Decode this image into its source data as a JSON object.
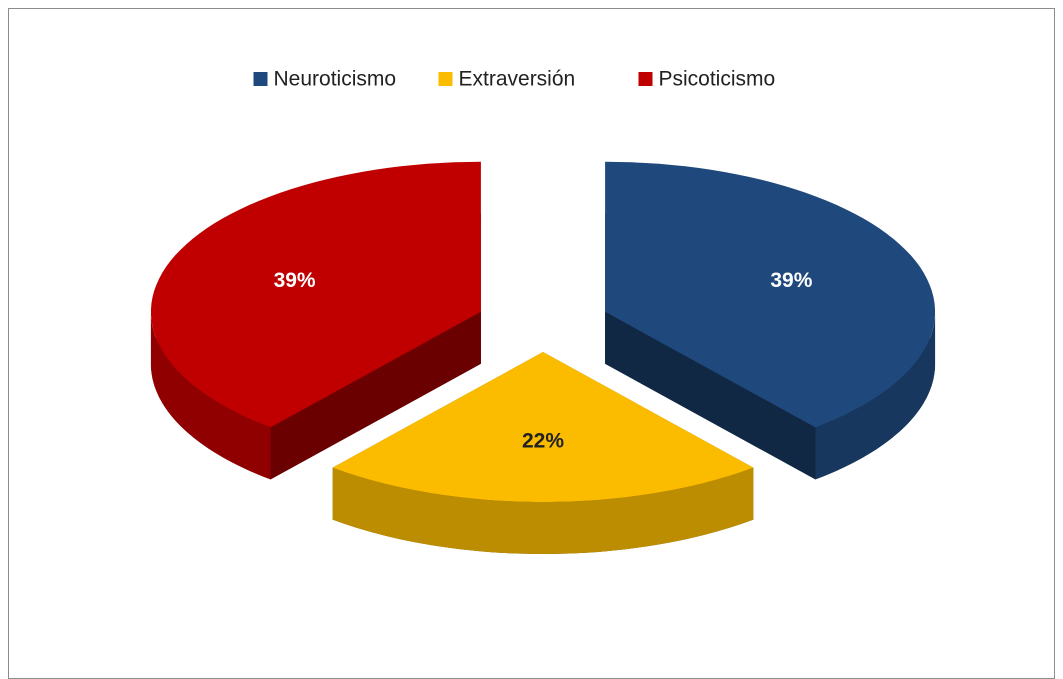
{
  "chart_data": {
    "type": "pie",
    "categories": [
      "Neuroticismo",
      "Extraversión",
      "Psicoticismo"
    ],
    "values": [
      39,
      22,
      39
    ],
    "value_labels": [
      "39%",
      "22%",
      "39%"
    ],
    "colors": [
      "#1f497d",
      "#fbbc00",
      "#c00000"
    ],
    "legend": "top",
    "exploded": true,
    "three_d": true
  }
}
